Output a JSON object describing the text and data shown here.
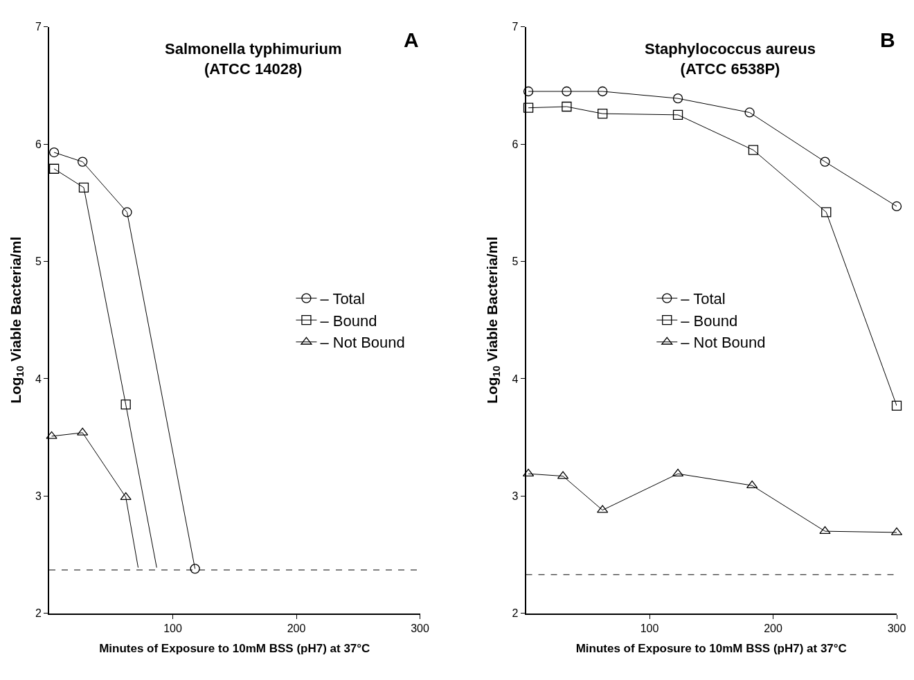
{
  "chart_data": [
    {
      "type": "line",
      "title": "Salmonella typhimurium\n(ATCC 14028)",
      "subtitle": "A",
      "xlabel": "Minutes of Exposure to 10mM BSS (pH7) at 37°C",
      "ylabel": "Log$_{10}$ Viable Bacteria/ml",
      "xlim": [
        0,
        300
      ],
      "xticks": [
        100,
        200,
        300
      ],
      "ylim": [
        2,
        7
      ],
      "yticks": [
        2,
        3,
        4,
        5,
        6,
        7
      ],
      "legend": "right",
      "line_style": "solid",
      "series": [
        {
          "name": "– Total",
          "color": "#000000",
          "marker": "circle",
          "x": [
            4,
            27,
            63,
            118
          ],
          "values": [
            5.93,
            5.85,
            5.42,
            2.38
          ]
        },
        {
          "name": "– Bound",
          "color": "#000000",
          "marker": "square",
          "x": [
            4,
            28,
            62
          ],
          "values": [
            5.79,
            5.63,
            3.78
          ]
        },
        {
          "name": "– Not Bound",
          "color": "#000000",
          "marker": "triangle",
          "x": [
            2,
            27,
            62
          ],
          "values": [
            3.51,
            3.54,
            2.99
          ]
        },
        {
          "color": "#000000",
          "marker": "none",
          "x": [
            62,
            87
          ],
          "values": [
            3.78,
            2.39
          ]
        },
        {
          "color": "#000000",
          "marker": "none",
          "x": [
            62,
            72
          ],
          "values": [
            2.99,
            2.39
          ]
        }
      ],
      "ref_lines": [
        {
          "axis": "y",
          "value": 2.37,
          "color": "#000000",
          "line_style": "dashed"
        }
      ]
    },
    {
      "type": "line",
      "title": "Staphylococcus aureus\n(ATCC 6538P)",
      "subtitle": "B",
      "xlabel": "Minutes of Exposure to 10mM BSS (pH7) at 37°C",
      "ylabel": "Log$_{10}$ Viable Bacteria/ml",
      "xlim": [
        0,
        300
      ],
      "xticks": [
        100,
        200,
        300
      ],
      "ylim": [
        2,
        7
      ],
      "yticks": [
        2,
        3,
        4,
        5,
        6,
        7
      ],
      "legend": "center",
      "line_style": "solid",
      "series": [
        {
          "name": "– Total",
          "color": "#000000",
          "marker": "circle",
          "x": [
            2,
            33,
            62,
            123,
            181,
            242,
            300
          ],
          "values": [
            6.45,
            6.45,
            6.45,
            6.39,
            6.27,
            5.85,
            5.47
          ]
        },
        {
          "name": "– Bound",
          "color": "#000000",
          "marker": "square",
          "x": [
            2,
            33,
            62,
            123,
            184,
            243,
            300
          ],
          "values": [
            6.31,
            6.32,
            6.26,
            6.25,
            5.95,
            5.42,
            3.77
          ]
        },
        {
          "name": "– Not Bound",
          "color": "#000000",
          "marker": "triangle",
          "x": [
            2,
            30,
            62,
            123,
            183,
            242,
            300
          ],
          "values": [
            3.19,
            3.17,
            2.88,
            3.19,
            3.09,
            2.7,
            2.69
          ]
        }
      ],
      "ref_lines": [
        {
          "axis": "y",
          "value": 2.33,
          "color": "#000000",
          "line_style": "dashed"
        }
      ]
    }
  ]
}
